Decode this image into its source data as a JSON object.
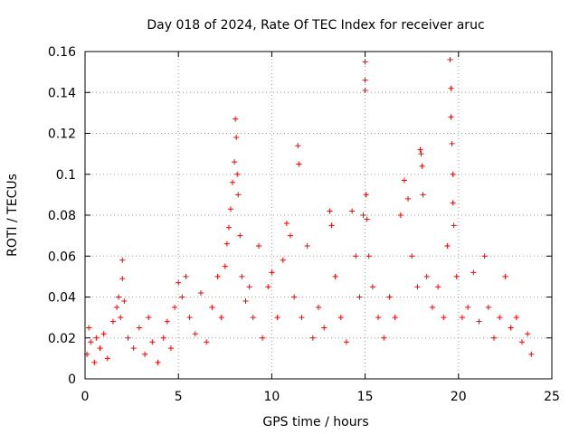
{
  "chart_data": {
    "type": "scatter",
    "title": "Day 018 of 2024, Rate Of TEC Index for receiver aruc",
    "xlabel": "GPS time / hours",
    "ylabel": "ROTI / TECUs",
    "xlim": [
      0,
      25
    ],
    "ylim": [
      0,
      0.16
    ],
    "xticks": [
      0,
      5,
      10,
      15,
      20,
      25
    ],
    "xtick_labels": [
      "0",
      "5",
      "10",
      "15",
      "20",
      "25"
    ],
    "yticks": [
      0,
      0.02,
      0.04,
      0.06,
      0.08,
      0.1,
      0.12,
      0.14,
      0.16
    ],
    "ytick_labels": [
      "0",
      "0.02",
      "0.04",
      "0.06",
      "0.08",
      "0.1",
      "0.12",
      "0.14",
      "0.16"
    ],
    "grid": true,
    "marker": "+",
    "marker_color": "#ff0000",
    "series": [
      {
        "points": [
          [
            0.1,
            0.012
          ],
          [
            0.2,
            0.025
          ],
          [
            0.3,
            0.018
          ],
          [
            0.5,
            0.008
          ],
          [
            0.6,
            0.02
          ],
          [
            0.8,
            0.015
          ],
          [
            1.0,
            0.022
          ],
          [
            1.2,
            0.01
          ],
          [
            1.5,
            0.028
          ],
          [
            1.7,
            0.035
          ],
          [
            1.8,
            0.04
          ],
          [
            1.9,
            0.03
          ],
          [
            2.0,
            0.058
          ],
          [
            2.0,
            0.049
          ],
          [
            2.1,
            0.038
          ],
          [
            2.3,
            0.02
          ],
          [
            2.6,
            0.015
          ],
          [
            2.9,
            0.025
          ],
          [
            3.2,
            0.012
          ],
          [
            3.4,
            0.03
          ],
          [
            3.6,
            0.018
          ],
          [
            3.9,
            0.008
          ],
          [
            4.2,
            0.02
          ],
          [
            4.4,
            0.028
          ],
          [
            4.6,
            0.015
          ],
          [
            4.8,
            0.035
          ],
          [
            5.0,
            0.047
          ],
          [
            5.2,
            0.04
          ],
          [
            5.4,
            0.05
          ],
          [
            5.6,
            0.03
          ],
          [
            5.9,
            0.022
          ],
          [
            6.2,
            0.042
          ],
          [
            6.5,
            0.018
          ],
          [
            6.8,
            0.035
          ],
          [
            7.1,
            0.05
          ],
          [
            7.3,
            0.03
          ],
          [
            7.5,
            0.055
          ],
          [
            7.6,
            0.066
          ],
          [
            7.7,
            0.074
          ],
          [
            7.8,
            0.083
          ],
          [
            7.9,
            0.096
          ],
          [
            8.0,
            0.106
          ],
          [
            8.05,
            0.127
          ],
          [
            8.1,
            0.118
          ],
          [
            8.15,
            0.1
          ],
          [
            8.2,
            0.09
          ],
          [
            8.3,
            0.07
          ],
          [
            8.4,
            0.05
          ],
          [
            8.6,
            0.038
          ],
          [
            8.8,
            0.045
          ],
          [
            9.0,
            0.03
          ],
          [
            9.3,
            0.065
          ],
          [
            9.5,
            0.02
          ],
          [
            9.8,
            0.045
          ],
          [
            10.0,
            0.052
          ],
          [
            10.3,
            0.03
          ],
          [
            10.6,
            0.058
          ],
          [
            10.8,
            0.076
          ],
          [
            11.0,
            0.07
          ],
          [
            11.2,
            0.04
          ],
          [
            11.4,
            0.114
          ],
          [
            11.45,
            0.105
          ],
          [
            11.6,
            0.03
          ],
          [
            11.9,
            0.065
          ],
          [
            12.2,
            0.02
          ],
          [
            12.5,
            0.035
          ],
          [
            12.8,
            0.025
          ],
          [
            13.1,
            0.082
          ],
          [
            13.2,
            0.075
          ],
          [
            13.4,
            0.05
          ],
          [
            13.7,
            0.03
          ],
          [
            14.0,
            0.018
          ],
          [
            14.3,
            0.082
          ],
          [
            14.5,
            0.06
          ],
          [
            14.7,
            0.04
          ],
          [
            14.9,
            0.08
          ],
          [
            15.0,
            0.155
          ],
          [
            15.0,
            0.146
          ],
          [
            15.0,
            0.141
          ],
          [
            15.05,
            0.09
          ],
          [
            15.1,
            0.078
          ],
          [
            15.2,
            0.06
          ],
          [
            15.4,
            0.045
          ],
          [
            15.7,
            0.03
          ],
          [
            16.0,
            0.02
          ],
          [
            16.3,
            0.04
          ],
          [
            16.6,
            0.03
          ],
          [
            16.9,
            0.08
          ],
          [
            17.1,
            0.097
          ],
          [
            17.3,
            0.088
          ],
          [
            17.5,
            0.06
          ],
          [
            17.8,
            0.045
          ],
          [
            17.95,
            0.112
          ],
          [
            18.0,
            0.11
          ],
          [
            18.05,
            0.104
          ],
          [
            18.1,
            0.09
          ],
          [
            18.3,
            0.05
          ],
          [
            18.6,
            0.035
          ],
          [
            18.9,
            0.045
          ],
          [
            19.2,
            0.03
          ],
          [
            19.4,
            0.065
          ],
          [
            19.55,
            0.156
          ],
          [
            19.6,
            0.142
          ],
          [
            19.6,
            0.128
          ],
          [
            19.65,
            0.115
          ],
          [
            19.7,
            0.1
          ],
          [
            19.7,
            0.086
          ],
          [
            19.75,
            0.075
          ],
          [
            19.9,
            0.05
          ],
          [
            20.2,
            0.03
          ],
          [
            20.5,
            0.035
          ],
          [
            20.8,
            0.052
          ],
          [
            21.1,
            0.028
          ],
          [
            21.4,
            0.06
          ],
          [
            21.6,
            0.035
          ],
          [
            21.9,
            0.02
          ],
          [
            22.2,
            0.03
          ],
          [
            22.5,
            0.05
          ],
          [
            22.8,
            0.025
          ],
          [
            23.1,
            0.03
          ],
          [
            23.4,
            0.018
          ],
          [
            23.7,
            0.022
          ],
          [
            23.9,
            0.012
          ]
        ]
      }
    ]
  }
}
